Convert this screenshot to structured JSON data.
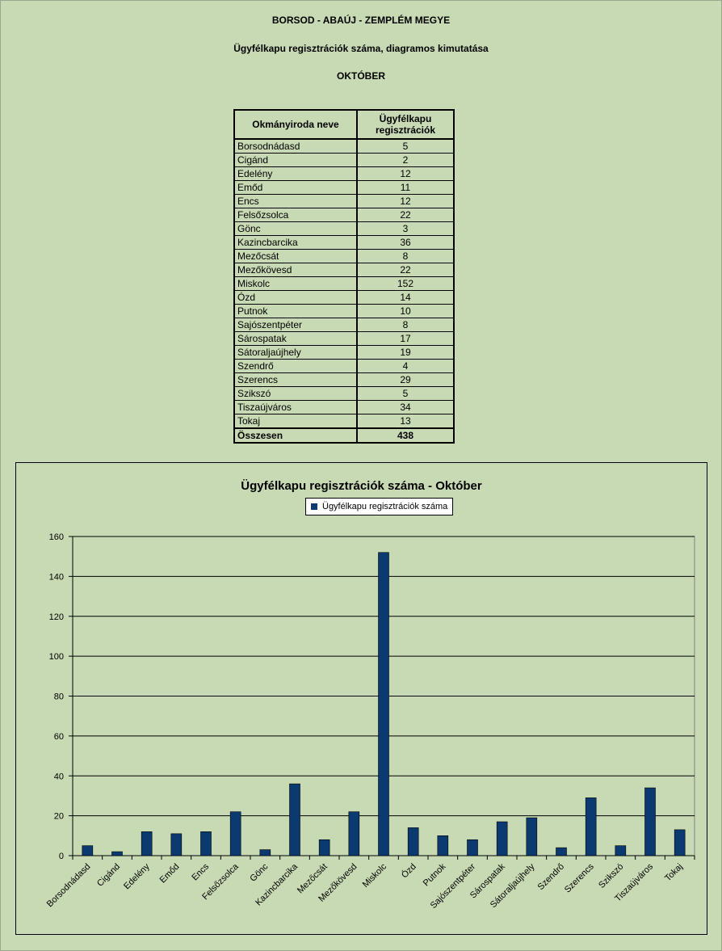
{
  "header": {
    "county": "BORSOD - ABAÚJ - ZEMPLÉM MEGYE",
    "subtitle": "Ügyfélkapu regisztrációk száma, diagramos kimutatása",
    "month": "OKTÓBER"
  },
  "table": {
    "col1": "Okmányiroda neve",
    "col2": "Ügyfélkapu regisztrációk",
    "rows": [
      [
        "Borsodnádasd",
        "5"
      ],
      [
        "Cigánd",
        "2"
      ],
      [
        "Edelény",
        "12"
      ],
      [
        "Emőd",
        "11"
      ],
      [
        "Encs",
        "12"
      ],
      [
        "Felsőzsolca",
        "22"
      ],
      [
        "Gönc",
        "3"
      ],
      [
        "Kazincbarcika",
        "36"
      ],
      [
        "Mezőcsát",
        "8"
      ],
      [
        "Mezőkövesd",
        "22"
      ],
      [
        "Miskolc",
        "152"
      ],
      [
        "Ózd",
        "14"
      ],
      [
        "Putnok",
        "10"
      ],
      [
        "Sajószentpéter",
        "8"
      ],
      [
        "Sárospatak",
        "17"
      ],
      [
        "Sátoraljaújhely",
        "19"
      ],
      [
        "Szendrő",
        "4"
      ],
      [
        "Szerencs",
        "29"
      ],
      [
        "Szikszó",
        "5"
      ],
      [
        "Tiszaújváros",
        "34"
      ],
      [
        "Tokaj",
        "13"
      ]
    ],
    "total_label": "Összesen",
    "total_value": "438"
  },
  "chart_data": {
    "type": "bar",
    "title": "Ügyfélkapu regisztrációk száma -   Október",
    "categories": [
      "Borsodnádasd",
      "Cigánd",
      "Edelény",
      "Emőd",
      "Encs",
      "Felsőzsolca",
      "Gönc",
      "Kazincbarcika",
      "Mezőcsát",
      "Mezőkövesd",
      "Miskolc",
      "Ózd",
      "Putnok",
      "Sajószentpéter",
      "Sárospatak",
      "Sátoraljaújhely",
      "Szendrő",
      "Szerencs",
      "Szikszó",
      "Tiszaújváros",
      "Tokaj"
    ],
    "series": [
      {
        "name": "Ügyfélkapu regisztrációk száma",
        "values": [
          5,
          2,
          12,
          11,
          12,
          22,
          3,
          36,
          8,
          22,
          152,
          14,
          10,
          8,
          17,
          19,
          4,
          29,
          5,
          34,
          13
        ]
      }
    ],
    "ylim": [
      0,
      160
    ],
    "yticks": [
      0,
      20,
      40,
      60,
      80,
      100,
      120,
      140,
      160
    ],
    "grid": true,
    "legend_position": "top-center",
    "bar_color": "#0b3a70"
  }
}
